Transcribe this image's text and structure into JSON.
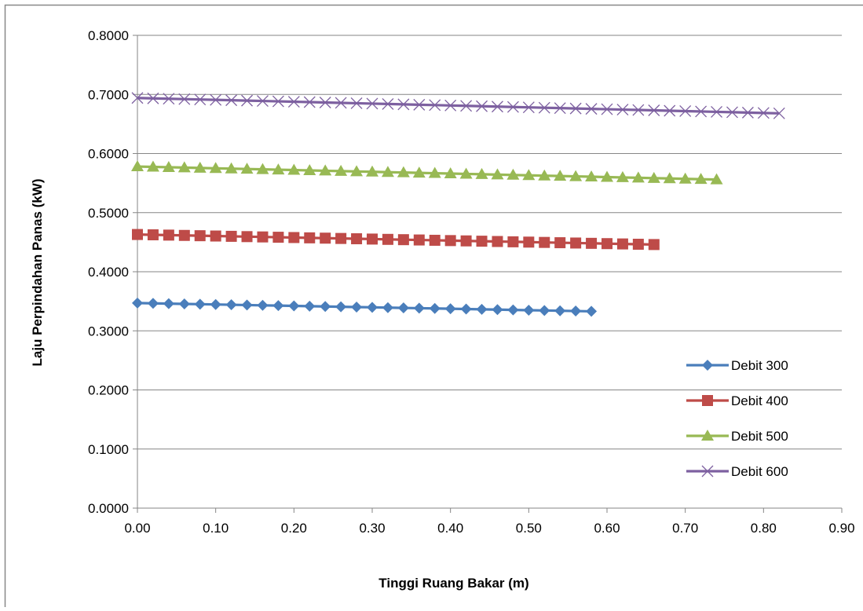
{
  "chart_data": {
    "type": "line",
    "title": "",
    "xlabel": "Tinggi Ruang Bakar (m)",
    "ylabel": "Laju Perpindahan Panas (kW)",
    "xlim": [
      0,
      0.9
    ],
    "ylim": [
      0,
      0.8
    ],
    "x_ticks": [
      "0.00",
      "0.10",
      "0.20",
      "0.30",
      "0.40",
      "0.50",
      "0.60",
      "0.70",
      "0.80",
      "0.90"
    ],
    "y_ticks": [
      "0.0000",
      "0.1000",
      "0.2000",
      "0.3000",
      "0.4000",
      "0.5000",
      "0.6000",
      "0.7000",
      "0.8000"
    ],
    "grid": "horizontal major gridlines",
    "legend_position": "right",
    "series": [
      {
        "name": "Debit 300",
        "color": "#4a7ebb",
        "marker": "diamond",
        "x_start": 0.0,
        "x_end": 0.58,
        "x_step": 0.02,
        "y_start": 0.347,
        "y_end": 0.333
      },
      {
        "name": "Debit 400",
        "color": "#be4b48",
        "marker": "square",
        "x_start": 0.0,
        "x_end": 0.66,
        "x_step": 0.02,
        "y_start": 0.463,
        "y_end": 0.446
      },
      {
        "name": "Debit 500",
        "color": "#98b954",
        "marker": "triangle",
        "x_start": 0.0,
        "x_end": 0.74,
        "x_step": 0.02,
        "y_start": 0.578,
        "y_end": 0.556
      },
      {
        "name": "Debit 600",
        "color": "#7d60a0",
        "marker": "x",
        "x_start": 0.0,
        "x_end": 0.82,
        "x_step": 0.02,
        "y_start": 0.694,
        "y_end": 0.668
      }
    ]
  }
}
